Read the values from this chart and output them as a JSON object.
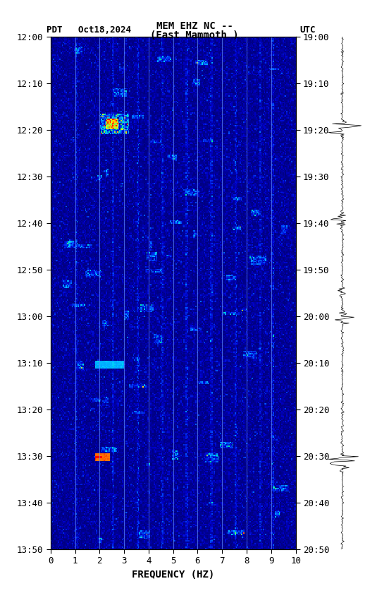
{
  "title_line1": "MEM EHZ NC --",
  "title_line2": "(East Mammoth )",
  "label_left": "PDT   Oct18,2024",
  "label_right": "UTC",
  "xlabel": "FREQUENCY (HZ)",
  "freq_min": 0,
  "freq_max": 10,
  "freq_ticks": [
    0,
    1,
    2,
    3,
    4,
    5,
    6,
    7,
    8,
    9,
    10
  ],
  "time_start_pdt": "12:00",
  "time_end_pdt": "13:50",
  "time_start_utc": "19:00",
  "time_end_utc": "20:50",
  "pdt_ticks": [
    "12:00",
    "12:10",
    "12:20",
    "12:30",
    "12:40",
    "12:50",
    "13:00",
    "13:10",
    "13:20",
    "13:30",
    "13:40",
    "13:50"
  ],
  "utc_ticks": [
    "19:00",
    "19:10",
    "19:20",
    "19:30",
    "19:40",
    "19:50",
    "20:00",
    "20:10",
    "20:20",
    "20:30",
    "20:40",
    "20:50"
  ],
  "bg_color": "#000080",
  "spectrogram_base_color": "#0000CD",
  "vertical_line_color": "#4080FF",
  "figure_bg": "#FFFFFF",
  "n_freq": 200,
  "n_time": 400,
  "random_seed": 42
}
